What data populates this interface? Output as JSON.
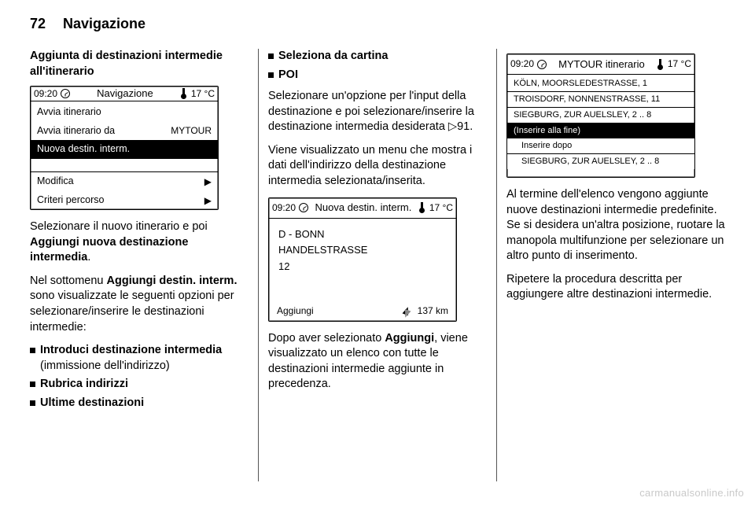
{
  "page_header": {
    "page_number": "72",
    "section": "Navigazione"
  },
  "watermark": "carmanualsonline.info",
  "col1": {
    "subhead": "Aggiunta di destinazioni intermedie all'itinerario",
    "para1_prefix": "Selezionare il nuovo itinerario e poi",
    "para1_bold": "Aggiungi nuova destinazione intermedia",
    "para1_suffix": ".",
    "para2_prefix": "Nel sottomenu ",
    "para2_bold": "Aggiungi destin. interm.",
    "para2_suffix": " sono visualizzate le seguenti opzioni per selezionare/inserire le destinazioni intermedie:",
    "bullets": [
      "Introduci destinazione intermedia",
      "Rubrica indirizzi",
      "Ultime destinazioni"
    ],
    "bullet1_paren": " (immissione dell'indirizzo)"
  },
  "col2": {
    "bullets": [
      "Seleziona da cartina",
      "POI"
    ],
    "para1_prefix": "Selezionare un'opzione per l'input della destinazione e poi selezionare/inserire la destinazione intermedia desiderata ",
    "para1_linkref": "91",
    "para1_suffix": ".",
    "para2": "Viene visualizzato un menu che mostra i dati dell'indirizzo della destinazione intermedia selezionata/inserita.",
    "para3_prefix": "Dopo aver selezionato ",
    "para3_bold": "Aggiungi",
    "para3_suffix": ", viene visualizzato un elenco con tutte le destinazioni intermedie aggiunte in precedenza."
  },
  "col3": {
    "para1": "Al termine dell'elenco vengono aggiunte nuove destinazioni intermedie predefinite. Se si desidera un'altra posizione, ruotare la manopola multifunzione per selezionare un altro punto di inserimento.",
    "para2": "Ripetere la procedura descritta per aggiungere altre destinazioni intermedie."
  },
  "screen1": {
    "time": "09:20",
    "title": "Navigazione",
    "temp": "17 °C",
    "rows": [
      {
        "label": "Avvia itinerario",
        "right": "",
        "selected": false
      },
      {
        "label": "Avvia itinerario da",
        "right": "MYTOUR",
        "selected": false
      },
      {
        "label": "Nuova destin. interm.",
        "right": "",
        "selected": true
      },
      {
        "label": "Modifica",
        "right": "▶",
        "selected": false
      },
      {
        "label": "Criteri percorso",
        "right": "▶",
        "selected": false
      }
    ]
  },
  "screen2": {
    "time": "09:20",
    "title": "Nuova destin. interm.",
    "temp": "17 °C",
    "lines": [
      "D - BONN",
      "HANDELSTRASSE",
      "12"
    ],
    "footer_left": "Aggiungi",
    "footer_right": "137 km"
  },
  "screen3": {
    "time": "09:20",
    "title": "MYTOUR itinerario",
    "temp": "17 °C",
    "rows": [
      {
        "label": "KÖLN, MOORSLEDESTRASSE, 1",
        "selected": false,
        "sub": false
      },
      {
        "label": "TROISDORF, NONNENSTRASSE, 11",
        "selected": false,
        "sub": false
      },
      {
        "label": "SIEGBURG, ZUR AUELSLEY, 2 .. 8",
        "selected": false,
        "sub": false
      },
      {
        "label": "(Inserire alla fine)",
        "selected": true,
        "sub": false
      },
      {
        "label": "Inserire dopo",
        "selected": false,
        "sub": true
      },
      {
        "label": "SIEGBURG, ZUR AUELSLEY, 2 .. 8",
        "selected": false,
        "sub": true
      }
    ]
  }
}
